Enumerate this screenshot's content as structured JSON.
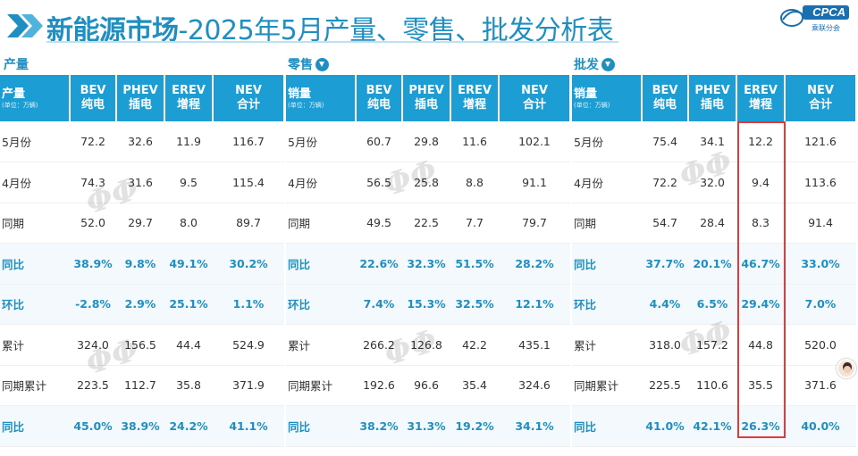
{
  "header": {
    "title_bold": "新能源市场",
    "title_rest": "-2025年5月产量、零售、批发分析表",
    "logo_text": "CPCA",
    "logo_sub": "乘联分会"
  },
  "tables": [
    {
      "section_label": "产量",
      "has_arrow": false,
      "header": [
        {
          "line1": "产量",
          "line2": "(单位：万辆)"
        },
        {
          "line1": "BEV",
          "line2": "纯电"
        },
        {
          "line1": "PHEV",
          "line2": "插电"
        },
        {
          "line1": "EREV",
          "line2": "增程"
        },
        {
          "line1": "NEV",
          "line2": "合计"
        }
      ],
      "rows": [
        {
          "label": "5月份",
          "vals": [
            "72.2",
            "32.6",
            "11.9",
            "116.7"
          ]
        },
        {
          "label": "4月份",
          "vals": [
            "74.3",
            "31.6",
            "9.5",
            "115.4"
          ]
        },
        {
          "label": "同期",
          "vals": [
            "52.0",
            "29.7",
            "8.0",
            "89.7"
          ]
        },
        {
          "label": "同比",
          "vals": [
            "38.9%",
            "9.8%",
            "49.1%",
            "30.2%"
          ]
        },
        {
          "label": "环比",
          "vals": [
            "-2.8%",
            "2.9%",
            "25.1%",
            "1.1%"
          ]
        },
        {
          "label": "累计",
          "vals": [
            "324.0",
            "156.5",
            "44.4",
            "524.9"
          ]
        },
        {
          "label": "同期累计",
          "vals": [
            "223.5",
            "112.7",
            "35.8",
            "371.9"
          ]
        },
        {
          "label": "同比",
          "vals": [
            "45.0%",
            "38.9%",
            "24.2%",
            "41.1%"
          ]
        }
      ]
    },
    {
      "section_label": "零售",
      "has_arrow": true,
      "header": [
        {
          "line1": "销量",
          "line2": "(单位：万辆)"
        },
        {
          "line1": "BEV",
          "line2": "纯电"
        },
        {
          "line1": "PHEV",
          "line2": "插电"
        },
        {
          "line1": "EREV",
          "line2": "增程"
        },
        {
          "line1": "NEV",
          "line2": "合计"
        }
      ],
      "rows": [
        {
          "label": "5月份",
          "vals": [
            "60.7",
            "29.8",
            "11.6",
            "102.1"
          ]
        },
        {
          "label": "4月份",
          "vals": [
            "56.5",
            "25.8",
            "8.8",
            "91.1"
          ]
        },
        {
          "label": "同期",
          "vals": [
            "49.5",
            "22.5",
            "7.7",
            "79.7"
          ]
        },
        {
          "label": "同比",
          "vals": [
            "22.6%",
            "32.3%",
            "51.5%",
            "28.2%"
          ]
        },
        {
          "label": "环比",
          "vals": [
            "7.4%",
            "15.3%",
            "32.5%",
            "12.1%"
          ]
        },
        {
          "label": "累计",
          "vals": [
            "266.2",
            "126.8",
            "42.2",
            "435.1"
          ]
        },
        {
          "label": "同期累计",
          "vals": [
            "192.6",
            "96.6",
            "35.4",
            "324.6"
          ]
        },
        {
          "label": "同比",
          "vals": [
            "38.2%",
            "31.3%",
            "19.2%",
            "34.1%"
          ]
        }
      ]
    },
    {
      "section_label": "批发",
      "has_arrow": true,
      "header": [
        {
          "line1": "销量",
          "line2": "(单位：万辆)"
        },
        {
          "line1": "BEV",
          "line2": "纯电"
        },
        {
          "line1": "PHEV",
          "line2": "插电"
        },
        {
          "line1": "EREV",
          "line2": "增程"
        },
        {
          "line1": "NEV",
          "line2": "合计"
        }
      ],
      "rows": [
        {
          "label": "5月份",
          "vals": [
            "75.4",
            "34.1",
            "12.2",
            "121.6"
          ]
        },
        {
          "label": "4月份",
          "vals": [
            "72.2",
            "32.0",
            "9.4",
            "113.6"
          ]
        },
        {
          "label": "同期",
          "vals": [
            "54.7",
            "28.4",
            "8.3",
            "91.4"
          ]
        },
        {
          "label": "同比",
          "vals": [
            "37.7%",
            "20.1%",
            "46.7%",
            "33.0%"
          ]
        },
        {
          "label": "环比",
          "vals": [
            "4.4%",
            "6.5%",
            "29.4%",
            "7.0%"
          ]
        },
        {
          "label": "累计",
          "vals": [
            "318.0",
            "157.2",
            "44.8",
            "520.0"
          ]
        },
        {
          "label": "同期累计",
          "vals": [
            "225.5",
            "110.6",
            "35.5",
            "371.6"
          ]
        },
        {
          "label": "同比",
          "vals": [
            "41.0%",
            "42.1%",
            "26.3%",
            "40.0%"
          ]
        }
      ]
    }
  ],
  "colors": {
    "header_bg": "#1c9ed4",
    "accent": "#1f8fc2",
    "highlight_border": "#e03a3a"
  }
}
